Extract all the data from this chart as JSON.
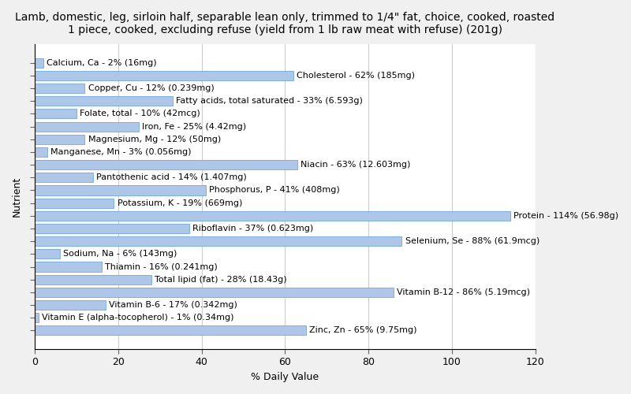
{
  "title": "Lamb, domestic, leg, sirloin half, separable lean only, trimmed to 1/4\" fat, choice, cooked, roasted\n1 piece, cooked, excluding refuse (yield from 1 lb raw meat with refuse) (201g)",
  "xlabel": "% Daily Value",
  "ylabel": "Nutrient",
  "nutrients": [
    "Calcium, Ca - 2% (16mg)",
    "Cholesterol - 62% (185mg)",
    "Copper, Cu - 12% (0.239mg)",
    "Fatty acids, total saturated - 33% (6.593g)",
    "Folate, total - 10% (42mcg)",
    "Iron, Fe - 25% (4.42mg)",
    "Magnesium, Mg - 12% (50mg)",
    "Manganese, Mn - 3% (0.056mg)",
    "Niacin - 63% (12.603mg)",
    "Pantothenic acid - 14% (1.407mg)",
    "Phosphorus, P - 41% (408mg)",
    "Potassium, K - 19% (669mg)",
    "Protein - 114% (56.98g)",
    "Riboflavin - 37% (0.623mg)",
    "Selenium, Se - 88% (61.9mcg)",
    "Sodium, Na - 6% (143mg)",
    "Thiamin - 16% (0.241mg)",
    "Total lipid (fat) - 28% (18.43g)",
    "Vitamin B-12 - 86% (5.19mcg)",
    "Vitamin B-6 - 17% (0.342mg)",
    "Vitamin E (alpha-tocopherol) - 1% (0.34mg)",
    "Zinc, Zn - 65% (9.75mg)"
  ],
  "values": [
    2,
    62,
    12,
    33,
    10,
    25,
    12,
    3,
    63,
    14,
    41,
    19,
    114,
    37,
    88,
    6,
    16,
    28,
    86,
    17,
    1,
    65
  ],
  "bar_color": "#aec6e8",
  "bar_edge_color": "#5b9bd5",
  "background_color": "#f0f0f0",
  "plot_background_color": "#ffffff",
  "xlim": [
    0,
    120
  ],
  "xticks": [
    0,
    20,
    40,
    60,
    80,
    100,
    120
  ],
  "title_fontsize": 10,
  "label_fontsize": 8,
  "tick_fontsize": 9,
  "bar_height": 0.75
}
